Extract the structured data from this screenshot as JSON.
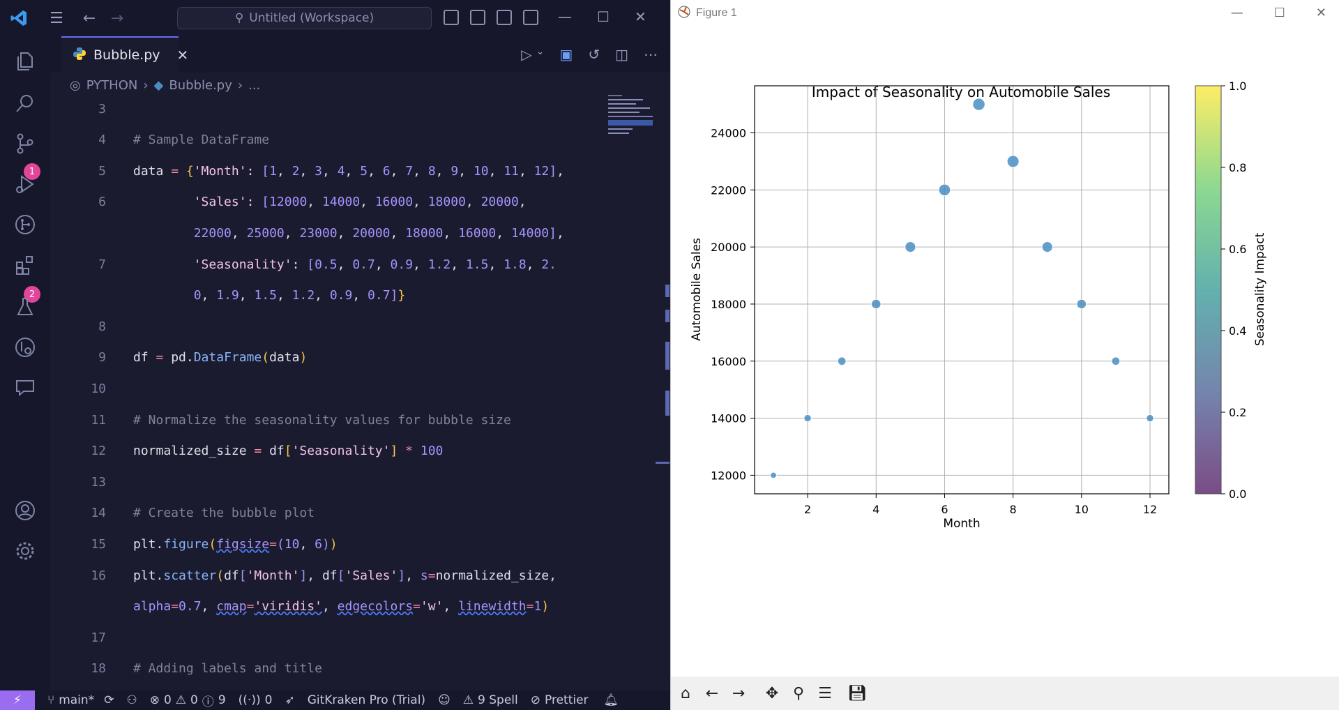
{
  "vscode": {
    "search_label": "Untitled (Workspace)",
    "tab_label": "Bubble.py",
    "breadcrumb": [
      "PYTHON",
      "Bubble.py",
      "..."
    ],
    "badges": {
      "source_control": "1",
      "extensions": "2"
    },
    "lines": [
      {
        "n": "3",
        "html": ""
      },
      {
        "n": "4",
        "html": "<span class='k-com'># Sample DataFrame</span>"
      },
      {
        "n": "5",
        "html": "data <span class='k-op'>=</span> <span class='k-par'>{</span><span class='k-str'>'Month'</span>: <span class='k-kw'>[</span><span class='k-num'>1</span>, <span class='k-num'>2</span>, <span class='k-num'>3</span>, <span class='k-num'>4</span>, <span class='k-num'>5</span>, <span class='k-num'>6</span>, <span class='k-num'>7</span>, <span class='k-num'>8</span>, <span class='k-num'>9</span>, <span class='k-num'>10</span>, <span class='k-num'>11</span>, <span class='k-num'>12</span><span class='k-kw'>]</span>,"
      },
      {
        "n": "6",
        "html": "        <span class='k-str'>'Sales'</span>: <span class='k-kw'>[</span><span class='k-num'>12000</span>, <span class='k-num'>14000</span>, <span class='k-num'>16000</span>, <span class='k-num'>18000</span>, <span class='k-num'>20000</span>,"
      },
      {
        "n": "",
        "html": "        <span class='k-num'>22000</span>, <span class='k-num'>25000</span>, <span class='k-num'>23000</span>, <span class='k-num'>20000</span>, <span class='k-num'>18000</span>, <span class='k-num'>16000</span>, <span class='k-num'>14000</span><span class='k-kw'>]</span>,"
      },
      {
        "n": "7",
        "html": "        <span class='k-str'>'Seasonality'</span>: <span class='k-kw'>[</span><span class='k-num'>0.5</span>, <span class='k-num'>0.7</span>, <span class='k-num'>0.9</span>, <span class='k-num'>1.2</span>, <span class='k-num'>1.5</span>, <span class='k-num'>1.8</span>, <span class='k-num'>2.</span>"
      },
      {
        "n": "",
        "html": "        <span class='k-num'>0</span>, <span class='k-num'>1.9</span>, <span class='k-num'>1.5</span>, <span class='k-num'>1.2</span>, <span class='k-num'>0.9</span>, <span class='k-num'>0.7</span><span class='k-kw'>]</span><span class='k-par'>}</span>"
      },
      {
        "n": "8",
        "html": ""
      },
      {
        "n": "9",
        "html": "df <span class='k-op'>=</span> pd.<span class='k-fn'>DataFrame</span><span class='k-par'>(</span>data<span class='k-par'>)</span>"
      },
      {
        "n": "10",
        "html": ""
      },
      {
        "n": "11",
        "html": "<span class='k-com'># Normalize the seasonality values for bubble size</span>"
      },
      {
        "n": "12",
        "html": "normalized_size <span class='k-op'>=</span> df<span class='k-par'>[</span><span class='k-str'>'Seasonality'</span><span class='k-par'>]</span> <span class='k-op'>*</span> <span class='k-num'>100</span>"
      },
      {
        "n": "13",
        "html": ""
      },
      {
        "n": "14",
        "html": "<span class='k-com'># Create the bubble plot</span>"
      },
      {
        "n": "15",
        "html": "plt.<span class='k-fn'>figure</span><span class='k-par'>(</span><span class='k-kw squig'>figsize</span><span class='k-op'>=</span><span class='k-kw'>(</span><span class='k-num'>10</span>, <span class='k-num'>6</span><span class='k-kw'>)</span><span class='k-par'>)</span>"
      },
      {
        "n": "16",
        "html": "plt.<span class='k-fn'>scatter</span><span class='k-par'>(</span>df<span class='k-kw'>[</span><span class='k-str'>'Month'</span><span class='k-kw'>]</span>, df<span class='k-kw'>[</span><span class='k-str'>'Sales'</span><span class='k-kw'>]</span>, <span class='k-kw'>s</span><span class='k-op'>=</span>normalized_size,"
      },
      {
        "n": "",
        "html": "<span class='k-kw'>alpha</span><span class='k-op'>=</span><span class='k-num'>0.7</span>, <span class='k-kw squig'>cmap</span><span class='k-op'>=</span><span class='k-str squig'>'viridis'</span>, <span class='k-kw squig'>edgecolors</span><span class='k-op'>=</span><span class='k-str'>'w'</span>, <span class='k-kw squig'>linewidth</span><span class='k-op'>=</span><span class='k-num'>1</span><span class='k-par'>)</span>"
      },
      {
        "n": "17",
        "html": ""
      },
      {
        "n": "18",
        "html": "<span class='k-com'># Adding labels and title</span>"
      }
    ],
    "status": {
      "branch": "main*",
      "problems": "0",
      "warnings": "0",
      "infos": "9",
      "ports": "0",
      "gitkraken": "GitKraken Pro (Trial)",
      "spell": "9 Spell",
      "prettier": "Prettier"
    }
  },
  "figure": {
    "window_title": "Figure 1"
  },
  "chart_data": {
    "type": "scatter",
    "title": "Impact of Seasonality on Automobile Sales",
    "xlabel": "Month",
    "ylabel": "Automobile Sales",
    "colorbar_label": "Seasonality Impact",
    "x": [
      1,
      2,
      3,
      4,
      5,
      6,
      7,
      8,
      9,
      10,
      11,
      12
    ],
    "y": [
      12000,
      14000,
      16000,
      18000,
      20000,
      22000,
      25000,
      23000,
      20000,
      18000,
      16000,
      14000
    ],
    "size": [
      0.5,
      0.7,
      0.9,
      1.2,
      1.5,
      1.8,
      2.0,
      1.9,
      1.5,
      1.2,
      0.9,
      0.7
    ],
    "xlim": [
      0.45,
      12.55
    ],
    "ylim": [
      11350,
      25650
    ],
    "xticks": [
      2,
      4,
      6,
      8,
      10,
      12
    ],
    "yticks": [
      12000,
      14000,
      16000,
      18000,
      20000,
      22000,
      24000
    ],
    "colorbar_ticks": [
      "0.0",
      "0.2",
      "0.4",
      "0.6",
      "0.8",
      "1.0"
    ],
    "marker_color": "#4a8fc4",
    "grid": true
  }
}
